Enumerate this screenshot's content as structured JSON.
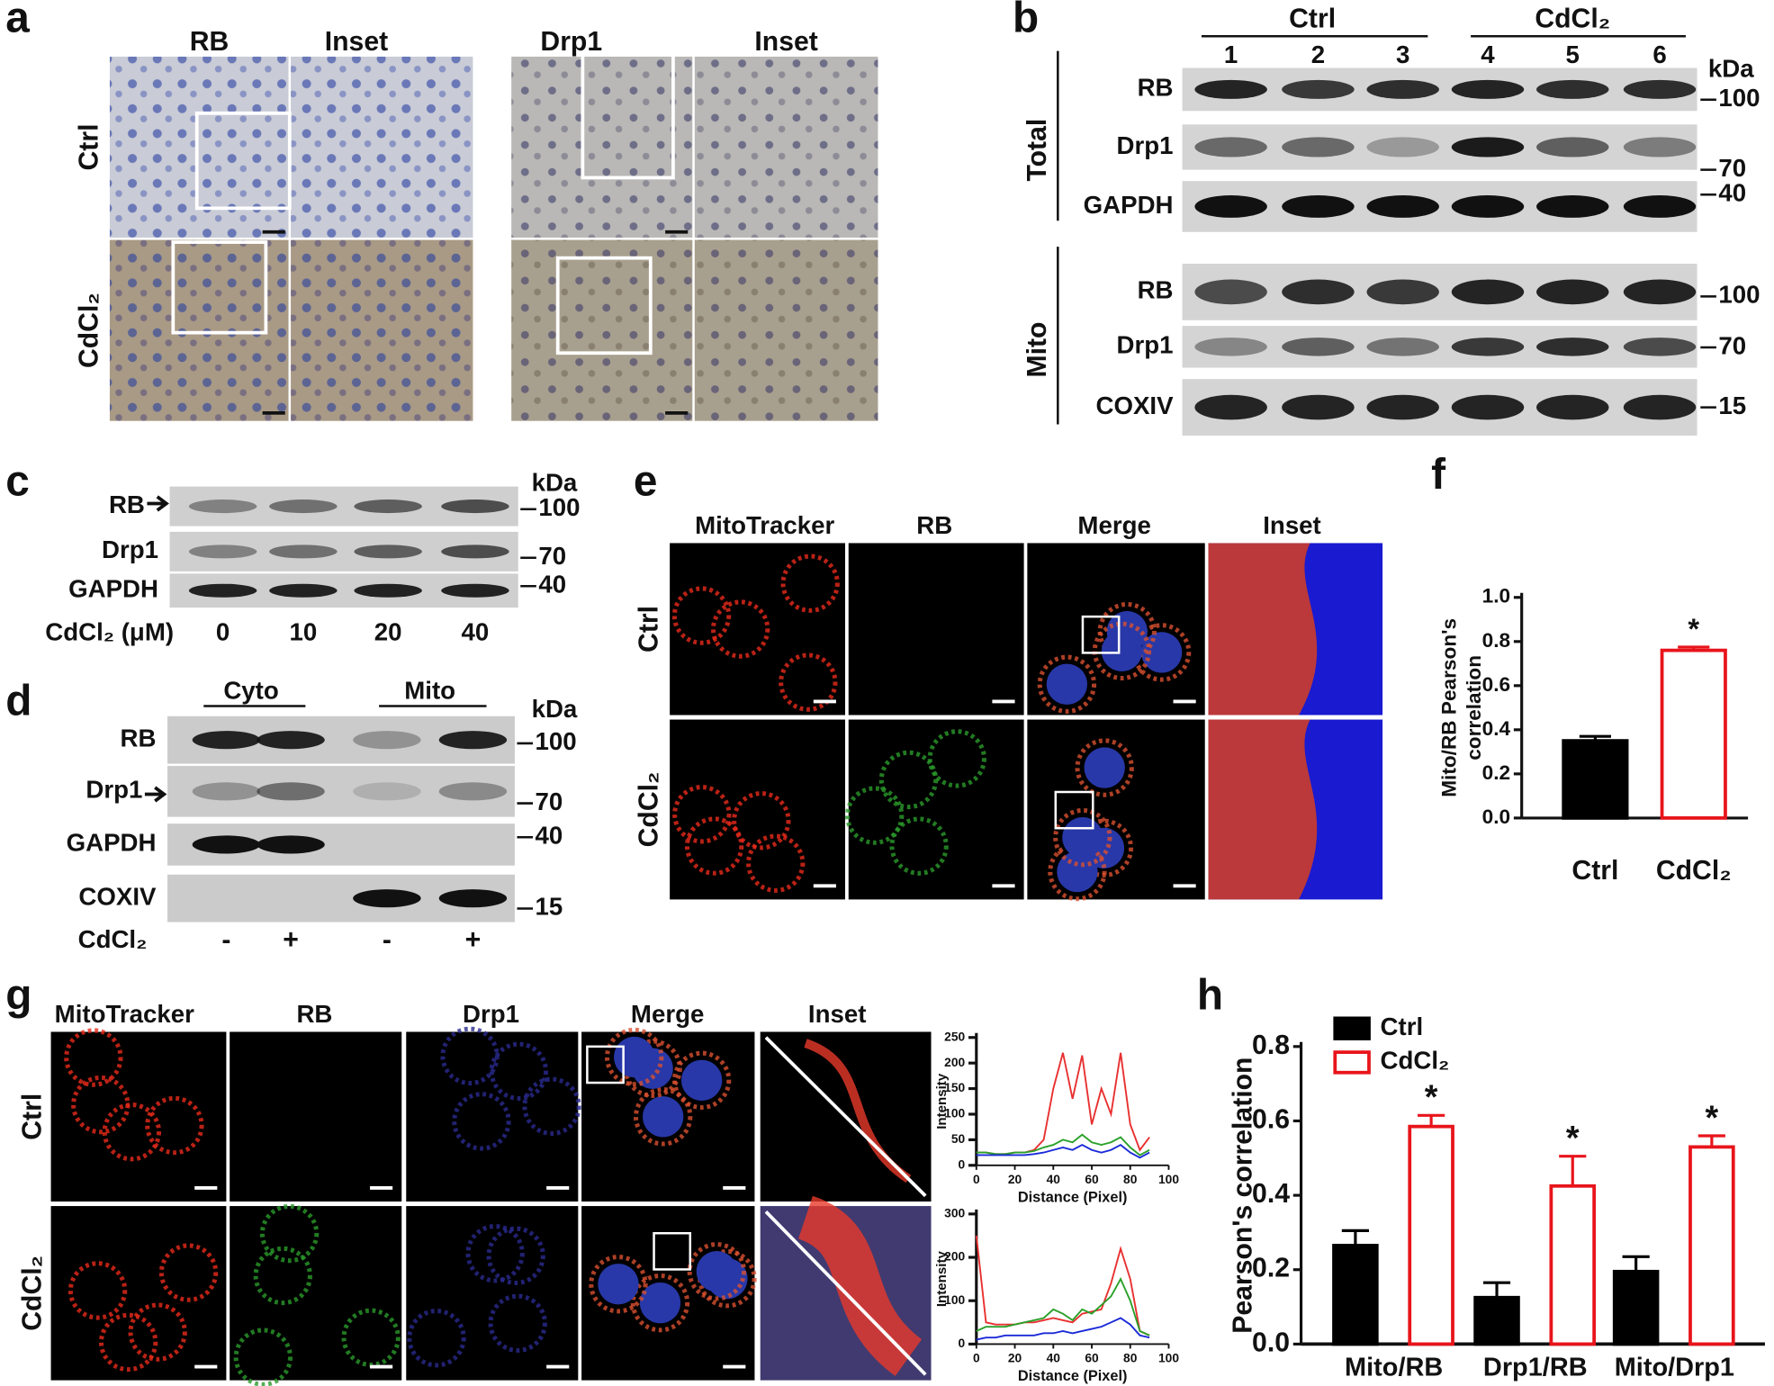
{
  "panels": {
    "a": {
      "label": "a",
      "columns": [
        "RB",
        "Inset",
        "Drp1",
        "Inset"
      ],
      "rows": [
        "Ctrl",
        "CdCl₂"
      ]
    },
    "b": {
      "label": "b",
      "groups": [
        "Ctrl",
        "CdCl₂"
      ],
      "lanes": [
        1,
        2,
        3,
        4,
        5,
        6
      ],
      "unit": "kDa",
      "sections": [
        {
          "name": "Total",
          "rows": [
            "RB",
            "Drp1",
            "GAPDH"
          ],
          "markers": [
            100,
            70,
            40
          ]
        },
        {
          "name": "Mito",
          "rows": [
            "RB",
            "Drp1",
            "COXIV"
          ],
          "markers": [
            100,
            70,
            15
          ]
        }
      ]
    },
    "c": {
      "label": "c",
      "rows": [
        "RB",
        "Drp1",
        "GAPDH"
      ],
      "unit": "kDa",
      "markers": [
        100,
        70,
        40
      ],
      "treatment": "CdCl₂ (μM)",
      "doses": [
        0,
        10,
        20,
        40
      ]
    },
    "d": {
      "label": "d",
      "groups": [
        "Cyto",
        "Mito"
      ],
      "rows": [
        "RB",
        "Drp1",
        "GAPDH",
        "COXIV"
      ],
      "unit": "kDa",
      "markers": [
        100,
        70,
        40,
        15
      ],
      "treatment": "CdCl₂",
      "conditions": [
        "-",
        "+",
        "-",
        "+"
      ]
    },
    "e": {
      "label": "e",
      "columns": [
        "MitoTracker",
        "RB",
        "Merge",
        "Inset"
      ],
      "rows": [
        "Ctrl",
        "CdCl₂"
      ]
    },
    "f": {
      "label": "f"
    },
    "g": {
      "label": "g",
      "columns": [
        "MitoTracker",
        "RB",
        "Drp1",
        "Merge",
        "Inset"
      ],
      "rows": [
        "Ctrl",
        "CdCl₂"
      ]
    },
    "h": {
      "label": "h"
    }
  },
  "chart_data": [
    {
      "type": "bar",
      "y_label": [
        "Mito/RB Pearson's",
        "correlation"
      ],
      "categories": [
        "Ctrl",
        "CdCl₂"
      ],
      "values": [
        0.35,
        0.76
      ],
      "errors": [
        0.02,
        0.015
      ],
      "colors": [
        "#000000",
        "#e8141b"
      ],
      "filled": [
        true,
        false
      ],
      "significance": [
        null,
        "*"
      ],
      "ylim": [
        0,
        1.0
      ],
      "yticks": [
        {
          "value": 0,
          "label": "0.0"
        },
        0.2,
        0.4,
        0.6,
        0.8,
        {
          "value": 1.0,
          "label": "1.0"
        }
      ]
    },
    {
      "type": "line",
      "x_label": "Distance (Pixel)",
      "y_label": "Intensity",
      "x": [
        0,
        5,
        10,
        15,
        20,
        25,
        30,
        35,
        40,
        45,
        50,
        55,
        60,
        65,
        70,
        75,
        80,
        85,
        90
      ],
      "series": [
        {
          "color": "#e83030",
          "values": [
            25,
            25,
            22,
            22,
            25,
            25,
            30,
            50,
            150,
            220,
            130,
            215,
            80,
            150,
            100,
            220,
            80,
            30,
            55
          ]
        },
        {
          "color": "#2aa02a",
          "values": [
            25,
            25,
            22,
            22,
            25,
            25,
            28,
            35,
            40,
            50,
            45,
            60,
            45,
            40,
            45,
            55,
            35,
            20,
            30
          ]
        },
        {
          "color": "#1a2ad8",
          "values": [
            20,
            20,
            20,
            20,
            20,
            20,
            22,
            25,
            30,
            35,
            30,
            40,
            30,
            25,
            30,
            40,
            25,
            15,
            25
          ]
        }
      ],
      "xlim": [
        0,
        100
      ],
      "xticks": [
        0,
        20,
        40,
        60,
        80,
        100
      ],
      "ylim": [
        0,
        250
      ],
      "yticks": [
        0,
        50,
        100,
        150,
        200,
        250
      ]
    },
    {
      "type": "line",
      "x_label": "Distance (Pixel)",
      "y_label": "Intensity",
      "x": [
        0,
        5,
        10,
        15,
        20,
        25,
        30,
        35,
        40,
        45,
        50,
        55,
        60,
        65,
        70,
        75,
        80,
        85,
        90
      ],
      "series": [
        {
          "color": "#e83030",
          "values": [
            250,
            50,
            45,
            45,
            45,
            50,
            50,
            55,
            60,
            55,
            50,
            70,
            75,
            80,
            140,
            220,
            150,
            30,
            20
          ]
        },
        {
          "color": "#2aa02a",
          "values": [
            30,
            40,
            40,
            40,
            45,
            50,
            55,
            60,
            80,
            70,
            55,
            80,
            70,
            90,
            110,
            150,
            100,
            30,
            20
          ]
        },
        {
          "color": "#1a2ad8",
          "values": [
            10,
            15,
            15,
            20,
            20,
            20,
            20,
            25,
            25,
            30,
            25,
            30,
            35,
            40,
            50,
            60,
            45,
            20,
            15
          ]
        }
      ],
      "xlim": [
        0,
        100
      ],
      "xticks": [
        0,
        20,
        40,
        60,
        80,
        100
      ],
      "ylim": [
        0,
        300
      ],
      "yticks": [
        0,
        100,
        200,
        300
      ]
    },
    {
      "type": "grouped_bar",
      "y_label": "Pearson's correlation",
      "categories": [
        "Mito/RB",
        "Drp1/RB",
        "Mito/Drp1"
      ],
      "series": [
        {
          "name": "Ctrl",
          "color": "#000000",
          "filled": true,
          "values": [
            0.265,
            0.125,
            0.195
          ],
          "errors": [
            0.04,
            0.04,
            0.04
          ],
          "significance": [
            null,
            null,
            null
          ]
        },
        {
          "name": "CdCl₂",
          "color": "#e8141b",
          "filled": false,
          "values": [
            0.585,
            0.425,
            0.53
          ],
          "errors": [
            0.03,
            0.08,
            0.03
          ],
          "significance": [
            "*",
            "*",
            "*"
          ]
        }
      ],
      "ylim": [
        0,
        0.8
      ],
      "yticks": [
        {
          "value": 0,
          "label": "0.0"
        },
        0.2,
        0.4,
        0.6,
        0.8
      ]
    }
  ]
}
